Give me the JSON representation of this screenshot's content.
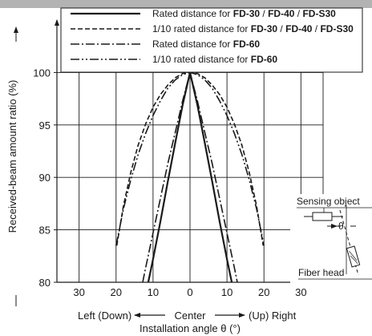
{
  "chart_data": {
    "type": "line",
    "ylabel": "Received-beam amount ratio (%)",
    "xlabel": "Installation angle θ (°)",
    "xlabel_directions": {
      "left": "Left (Down)",
      "center": "Center",
      "right": "(Up) Right"
    },
    "x_tick_labels": [
      "30",
      "20",
      "10",
      "0",
      "10",
      "20",
      "30"
    ],
    "x_tick_values": [
      -30,
      -20,
      -10,
      0,
      10,
      20,
      30
    ],
    "y_tick_labels": [
      "80",
      "85",
      "90",
      "95",
      "100"
    ],
    "y_tick_values": [
      80,
      85,
      90,
      95,
      100
    ],
    "xlim": [
      -36,
      36
    ],
    "ylim": [
      80,
      105
    ],
    "grid": true,
    "legend_position": "top",
    "series": [
      {
        "name_parts": [
          "Rated distance for ",
          "FD-30",
          " / ",
          "FD-40",
          " / ",
          "FD-S30"
        ],
        "bold": [
          false,
          true,
          false,
          true,
          false,
          true
        ],
        "color": "#1a1a1a",
        "style": "solid",
        "x": [
          -11.3,
          -10,
          -8,
          -6,
          -4,
          -2,
          0,
          2,
          4,
          6,
          8,
          10,
          11.3
        ],
        "y": [
          80,
          82.2,
          85.8,
          89.6,
          93.3,
          96.9,
          100,
          96.9,
          93.3,
          89.6,
          85.8,
          82.2,
          80
        ]
      },
      {
        "name_parts": [
          "1/10 rated distance for ",
          "FD-30",
          " / ",
          "FD-40",
          " / ",
          "FD-S30"
        ],
        "bold": [
          false,
          true,
          false,
          true,
          false,
          true
        ],
        "color": "#1a1a1a",
        "style": "dashed",
        "x": [
          -19.8,
          -18,
          -16,
          -14,
          -12,
          -10,
          -8,
          -6,
          -4,
          -2,
          0,
          2,
          4,
          6,
          8,
          10,
          12,
          14,
          16,
          18,
          19.8
        ],
        "y": [
          83.5,
          87.3,
          90.5,
          93.1,
          95.1,
          96.7,
          97.9,
          98.8,
          99.5,
          99.9,
          100,
          99.9,
          99.5,
          98.8,
          97.9,
          96.7,
          95.1,
          93.1,
          90.5,
          87.3,
          83.5
        ]
      },
      {
        "name_parts": [
          "Rated distance for ",
          "FD-60"
        ],
        "bold": [
          false,
          true
        ],
        "color": "#1a1a1a",
        "style": "dash-dot",
        "x": [
          -12.8,
          -12,
          -10,
          -8,
          -6,
          -4,
          -2,
          0,
          2,
          4,
          6,
          8,
          10,
          12,
          12.8
        ],
        "y": [
          80,
          81.4,
          84.7,
          88,
          91.3,
          94.3,
          97.3,
          100,
          97.3,
          94.3,
          91.3,
          88,
          84.7,
          81.4,
          80
        ]
      },
      {
        "name_parts": [
          "1/10 rated distance for ",
          "FD-60"
        ],
        "bold": [
          false,
          true
        ],
        "color": "#1a1a1a",
        "style": "dash-dot-dot",
        "x": [
          -20,
          -18,
          -16,
          -14,
          -12,
          -10,
          -8,
          -6,
          -4,
          -2,
          0,
          2,
          4,
          6,
          8,
          10,
          12,
          14,
          16,
          18,
          20
        ],
        "y": [
          83.5,
          87,
          89.8,
          92.2,
          94.2,
          95.9,
          97.3,
          98.5,
          99.3,
          99.8,
          100,
          99.8,
          99.3,
          98.5,
          97.3,
          95.9,
          94.2,
          92.2,
          89.8,
          87,
          83.5
        ]
      }
    ]
  },
  "inset": {
    "sensing_object_label": "Sensing object",
    "angle_label": "θ",
    "fiber_head_label": "Fiber head"
  }
}
